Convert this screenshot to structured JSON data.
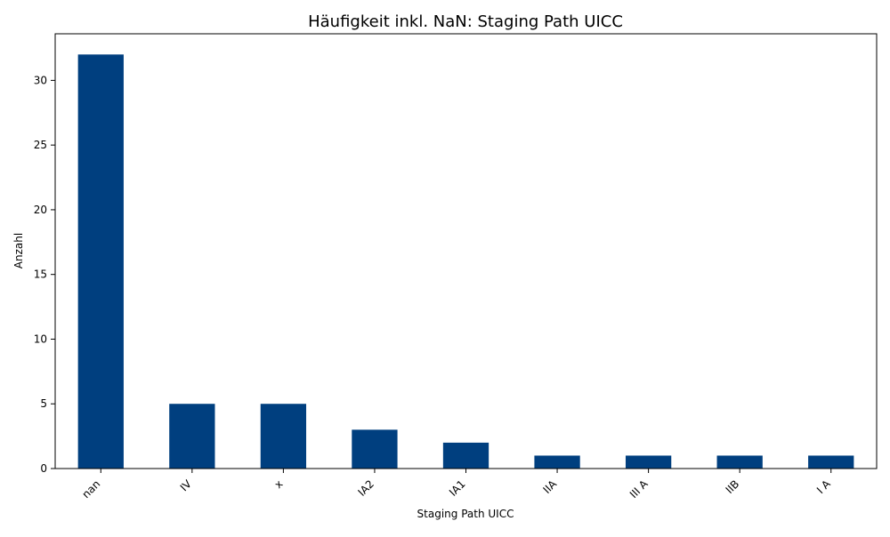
{
  "chart_data": {
    "type": "bar",
    "title": "Häufigkeit inkl. NaN: Staging Path UICC",
    "xlabel": "Staging Path UICC",
    "ylabel": "Anzahl",
    "categories": [
      "nan",
      "IV",
      "x",
      "IA2",
      "IA1",
      "IIA",
      "III A",
      "IIB",
      "I A"
    ],
    "values": [
      32,
      5,
      5,
      3,
      2,
      1,
      1,
      1,
      1
    ],
    "ylim": [
      0,
      33.6
    ],
    "yticks": [
      0,
      5,
      10,
      15,
      20,
      25,
      30
    ],
    "bar_color": "#003f7f",
    "grid": false,
    "legend": false
  }
}
